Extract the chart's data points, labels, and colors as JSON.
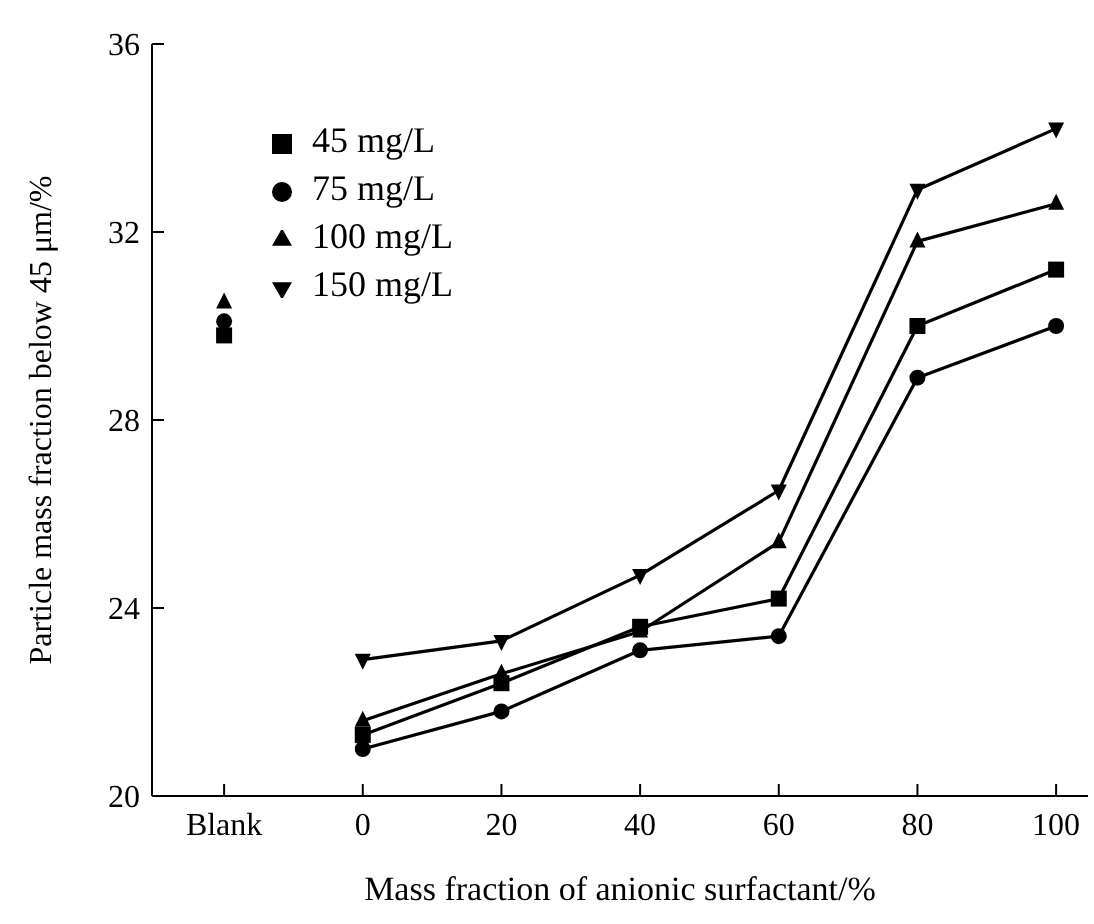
{
  "chart_data": {
    "type": "line",
    "xlabel": "Mass fraction of anionic surfactant/%",
    "ylabel": "Particle mass fraction below 45 μm/%",
    "categories": [
      "Blank",
      "0",
      "20",
      "40",
      "60",
      "80",
      "100"
    ],
    "ylim": [
      20,
      36
    ],
    "yticks": [
      20,
      24,
      28,
      32,
      36
    ],
    "grid": false,
    "legend": "top left",
    "series": [
      {
        "name": "45 mg/L",
        "color": "#000000",
        "marker": "square",
        "values": [
          null,
          21.3,
          22.4,
          23.6,
          24.2,
          30.0,
          31.2
        ]
      },
      {
        "name": "75 mg/L",
        "color": "#000000",
        "marker": "circle",
        "values": [
          null,
          21.0,
          21.8,
          23.1,
          23.4,
          28.9,
          30.0
        ]
      },
      {
        "name": "100 mg/L",
        "color": "#000000",
        "marker": "triangle",
        "values": [
          null,
          21.6,
          22.6,
          23.5,
          25.4,
          31.8,
          32.6
        ]
      },
      {
        "name": "150 mg/L",
        "color": "#000000",
        "marker": "triangle-down",
        "values": [
          null,
          22.9,
          23.3,
          24.7,
          26.5,
          32.9,
          34.2
        ]
      },
      {
        "type": "scatter",
        "color": "#000000",
        "marker": "square",
        "x": [
          "Blank"
        ],
        "values": [
          29.8
        ]
      },
      {
        "type": "scatter",
        "color": "#000000",
        "marker": "circle",
        "x": [
          "Blank"
        ],
        "values": [
          30.1
        ]
      },
      {
        "type": "scatter",
        "color": "#000000",
        "marker": "triangle",
        "x": [
          "Blank"
        ],
        "values": [
          30.5
        ]
      }
    ]
  }
}
